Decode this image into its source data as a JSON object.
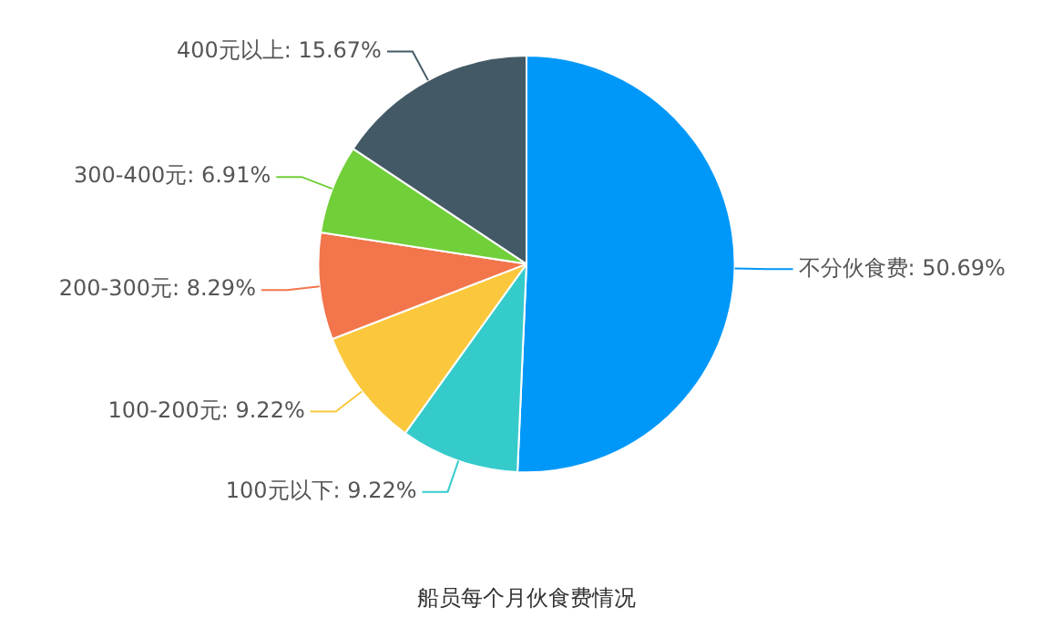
{
  "chart_data": {
    "type": "pie",
    "title": "船员每个月伙食费情况",
    "categories": [
      "不分伙食费",
      "100元以下",
      "100-200元",
      "200-300元",
      "300-400元",
      "400元以上"
    ],
    "values": [
      50.69,
      9.22,
      9.22,
      8.29,
      6.91,
      15.67
    ],
    "colors": [
      "#0098f8",
      "#36cbcb",
      "#fbc83d",
      "#f2754b",
      "#71cf3a",
      "#435a66"
    ],
    "value_labels": [
      "50.69%",
      "9.22%",
      "9.22%",
      "8.29%",
      "6.91%",
      "15.67%"
    ],
    "legend": false
  }
}
